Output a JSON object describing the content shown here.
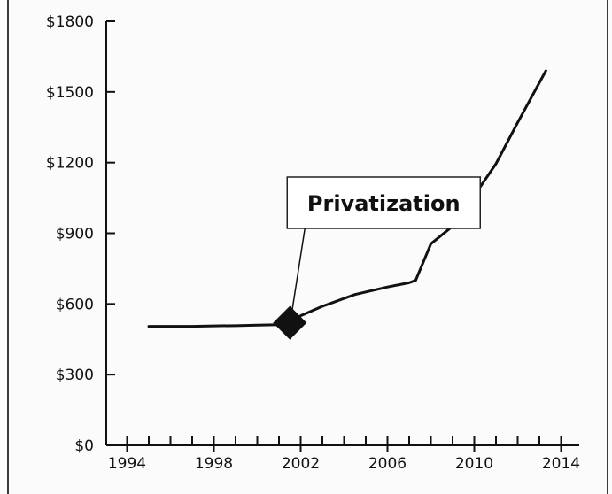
{
  "chart_data": {
    "type": "line",
    "title": "",
    "xlabel": "",
    "ylabel": "",
    "xlim": [
      1993,
      2015
    ],
    "ylim": [
      0,
      1800
    ],
    "x_ticks": [
      1994,
      1998,
      2002,
      2006,
      2010,
      2014
    ],
    "x_tick_labels": [
      "1994",
      "1998",
      "2002",
      "2006",
      "2010",
      "2014"
    ],
    "y_ticks": [
      0,
      300,
      600,
      900,
      1200,
      1500,
      1800
    ],
    "y_tick_labels": [
      "$0",
      "$300",
      "$600",
      "$900",
      "$1200",
      "$1500",
      "$1800"
    ],
    "x_minor_tick_step": 1,
    "grid": false,
    "series": [
      {
        "color": "#111111",
        "x": [
          1995,
          1996,
          1997,
          1998,
          1999,
          2000,
          2001,
          2001.5,
          2002,
          2003,
          2004.5,
          2006,
          2007,
          2007.3,
          2008,
          2009,
          2010,
          2011,
          2012,
          2013.3
        ],
        "y": [
          505,
          505,
          505,
          507,
          508,
          510,
          512,
          520,
          550,
          590,
          640,
          672,
          690,
          700,
          855,
          930,
          1060,
          1195,
          1370,
          1590
        ]
      }
    ],
    "annotations": [
      {
        "text": "Privatization",
        "x": 2001.5,
        "y": 520,
        "marker": "diamond",
        "marker_color": "#111111"
      }
    ]
  }
}
